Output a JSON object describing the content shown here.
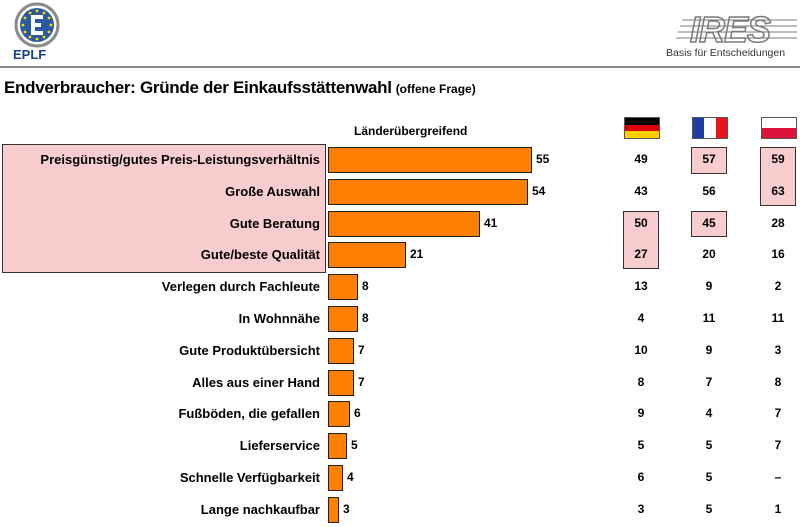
{
  "header": {
    "left_logo_text": "EPLF",
    "right_logo_text": "IRES",
    "right_logo_tagline": "Basis für Entscheidungen"
  },
  "title": {
    "main": "Endverbraucher: Gründe der Einkaufsstättenwahl",
    "sub": "(offene Frage)"
  },
  "column_header": "Länderübergreifend",
  "flags": [
    {
      "icon": "germany-flag-icon",
      "colors": [
        "#000000",
        "#dd0000",
        "#ffce00"
      ],
      "orientation": "horizontal"
    },
    {
      "icon": "france-flag-icon",
      "colors": [
        "#1f3fa0",
        "#ffffff",
        "#e8141b"
      ],
      "orientation": "vertical"
    },
    {
      "icon": "poland-flag-icon",
      "colors": [
        "#ffffff",
        "#dc143c"
      ],
      "orientation": "horizontal"
    }
  ],
  "colors": {
    "bar": "#ff7f00",
    "highlight": "#f9cdcd"
  },
  "chart_data": {
    "type": "bar",
    "orientation": "horizontal",
    "title": "Endverbraucher: Gründe der Einkaufsstättenwahl",
    "subtitle": "(offene Frage)",
    "categories": [
      "Preisgünstig/gutes Preis-Leistungsverhältnis",
      "Große Auswahl",
      "Gute Beratung",
      "Gute/beste Qualität",
      "Verlegen durch Fachleute",
      "In Wohnnähe",
      "Gute Produktübersicht",
      "Alles aus einer Hand",
      "Fußböden, die gefallen",
      "Lieferservice",
      "Schnelle Verfügbarkeit",
      "Lange nachkaufbar"
    ],
    "series": [
      {
        "name": "Länderübergreifend",
        "values": [
          55,
          54,
          41,
          21,
          8,
          8,
          7,
          7,
          6,
          5,
          4,
          3
        ]
      }
    ],
    "country_table": [
      {
        "icon": "germany-flag-icon",
        "values": [
          "49",
          "43",
          "50",
          "27",
          "13",
          "4",
          "10",
          "8",
          "9",
          "5",
          "6",
          "3"
        ],
        "highlighted_rows": [
          2,
          3
        ]
      },
      {
        "icon": "france-flag-icon",
        "values": [
          "57",
          "56",
          "45",
          "20",
          "9",
          "11",
          "9",
          "7",
          "4",
          "5",
          "5",
          "5"
        ],
        "highlighted_rows": [
          0,
          2
        ]
      },
      {
        "icon": "poland-flag-icon",
        "values": [
          "59",
          "63",
          "28",
          "16",
          "2",
          "11",
          "3",
          "8",
          "7",
          "7",
          "–",
          "1"
        ],
        "highlighted_rows": [
          0,
          1
        ]
      }
    ],
    "highlighted_categories": [
      0,
      1,
      2,
      3
    ],
    "xlim": [
      0,
      60
    ]
  }
}
